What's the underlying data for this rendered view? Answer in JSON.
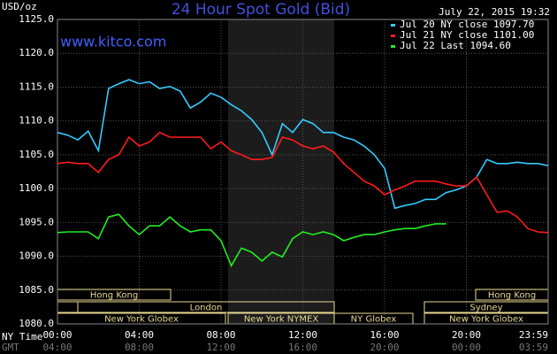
{
  "chart_data": {
    "type": "line",
    "title": "24 Hour Spot Gold (Bid)",
    "timestamp": "July 22, 2015 19:32",
    "site": "www.kitco.com",
    "y_label": "USD/oz",
    "x_label": "NY Time",
    "x2_label": "GMT",
    "x": [
      0,
      0.5,
      1,
      1.5,
      2,
      2.5,
      3,
      3.5,
      4,
      4.5,
      5,
      5.5,
      6,
      6.5,
      7,
      7.5,
      8,
      8.5,
      9,
      9.5,
      10,
      10.5,
      11,
      11.5,
      12,
      12.5,
      13,
      13.5,
      14,
      14.5,
      15,
      15.5,
      16,
      16.5,
      17,
      17.5,
      18,
      18.5,
      19,
      19.5,
      20,
      20.5,
      21,
      21.5,
      22,
      22.5,
      23,
      23.5,
      23.99
    ],
    "series": [
      {
        "name": "Jul 20 NY close 1097.70",
        "color": "#33ccff",
        "values": [
          1108.3,
          1107.9,
          1107.2,
          1108.5,
          1105.6,
          1114.8,
          1115.5,
          1116.1,
          1115.5,
          1115.8,
          1114.8,
          1115.1,
          1114.4,
          1111.9,
          1112.8,
          1114.1,
          1113.5,
          1112.4,
          1111.5,
          1110.2,
          1108.3,
          1105.0,
          1109.6,
          1108.3,
          1110.2,
          1109.6,
          1108.3,
          1108.3,
          1107.6,
          1107.2,
          1106.3,
          1105.0,
          1103.0,
          1097.1,
          1097.5,
          1097.8,
          1098.4,
          1098.4,
          1099.4,
          1099.8,
          1100.4,
          1101.7,
          1104.3,
          1103.7,
          1103.7,
          1103.9,
          1103.7,
          1103.7,
          1103.4
        ]
      },
      {
        "name": "Jul 21 NY close 1101.00",
        "color": "#ff1a1a",
        "values": [
          1103.7,
          1103.9,
          1103.7,
          1103.7,
          1102.4,
          1104.3,
          1105.0,
          1107.6,
          1106.3,
          1106.9,
          1108.3,
          1107.6,
          1107.6,
          1107.6,
          1107.6,
          1105.9,
          1106.9,
          1105.6,
          1105.0,
          1104.3,
          1104.3,
          1104.6,
          1107.6,
          1107.2,
          1106.3,
          1105.9,
          1106.3,
          1105.4,
          1103.7,
          1102.4,
          1101.1,
          1100.4,
          1099.1,
          1099.8,
          1100.4,
          1101.1,
          1101.1,
          1101.1,
          1100.7,
          1100.4,
          1100.4,
          1101.7,
          1099.1,
          1096.5,
          1096.7,
          1095.8,
          1094.1,
          1093.6,
          1093.5
        ]
      },
      {
        "name": "Jul 22 Last 1094.60",
        "color": "#22ee22",
        "values": [
          1093.5,
          1093.6,
          1093.6,
          1093.6,
          1092.6,
          1095.8,
          1096.2,
          1094.5,
          1093.2,
          1094.5,
          1094.5,
          1095.8,
          1094.5,
          1093.6,
          1093.9,
          1093.9,
          1092.3,
          1088.6,
          1091.2,
          1090.6,
          1089.3,
          1090.6,
          1089.9,
          1092.6,
          1093.6,
          1093.2,
          1093.6,
          1093.2,
          1092.3,
          1092.8,
          1093.2,
          1093.2,
          1093.6,
          1093.9,
          1094.1,
          1094.1,
          1094.5,
          1094.8,
          1094.8,
          null,
          null,
          null,
          null,
          null,
          null,
          null,
          null,
          null,
          null
        ]
      }
    ],
    "xlim": [
      0,
      24
    ],
    "xticks": [
      {
        "value": 0,
        "label": "00:00"
      },
      {
        "value": 4,
        "label": "04:00"
      },
      {
        "value": 8,
        "label": "08:00"
      },
      {
        "value": 12,
        "label": "12:00"
      },
      {
        "value": 16,
        "label": "16:00"
      },
      {
        "value": 20,
        "label": "20:00"
      },
      {
        "value": 24,
        "label": "23:59"
      }
    ],
    "gmt_labels": [
      "04:00",
      "08:00",
      "12:00",
      "16:00",
      "20:00",
      "00:00",
      "03:59"
    ],
    "ylim": [
      1080,
      1125
    ],
    "yticks": [
      {
        "value": 1080,
        "label": "1080.0"
      },
      {
        "value": 1085,
        "label": "1085.0"
      },
      {
        "value": 1090,
        "label": "1090.0"
      },
      {
        "value": 1095,
        "label": "1095.0"
      },
      {
        "value": 1100,
        "label": "1100.0"
      },
      {
        "value": 1105,
        "label": "1105.0"
      },
      {
        "value": 1110,
        "label": "1110.0"
      },
      {
        "value": 1115,
        "label": "1115.0"
      },
      {
        "value": 1120,
        "label": "1120.0"
      },
      {
        "value": 1125,
        "label": "1125.0"
      }
    ],
    "grid": true,
    "sessions": [
      "Hong Kong",
      "London",
      "New York Globex",
      "New York NYMEX",
      "NY Globex",
      "Hong Kong",
      "Sydney",
      "New York Globex"
    ]
  }
}
